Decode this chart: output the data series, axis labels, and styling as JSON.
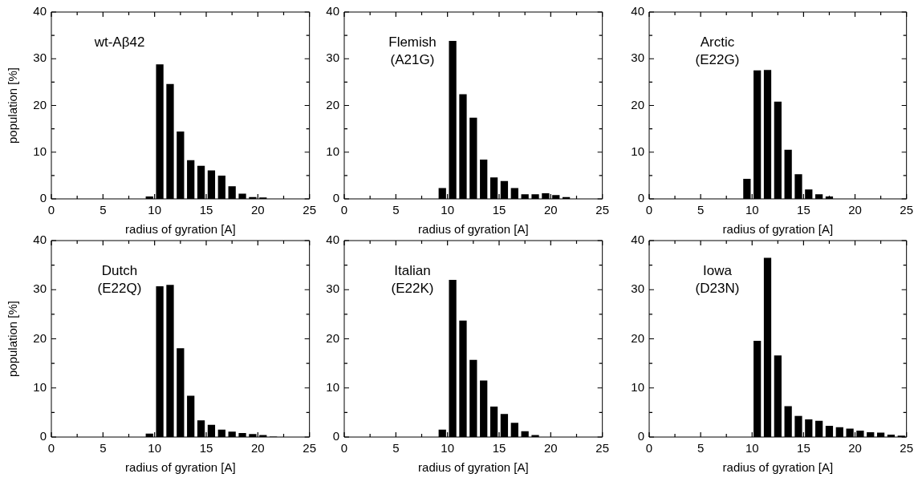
{
  "chart_data": [
    {
      "type": "histogram",
      "annotations": [
        "wt-Aβ42"
      ],
      "ylabel": "population [%]",
      "xlabel": "radius of gyration [A]",
      "bins": [
        9,
        10,
        11,
        12,
        13,
        14,
        15,
        16,
        17,
        18,
        19,
        20,
        21
      ],
      "values": [
        0.5,
        28.8,
        24.6,
        14.4,
        8.3,
        7.1,
        6.1,
        5.0,
        2.7,
        1.1,
        0.4,
        0.3
      ],
      "color": "#000000",
      "xlim": [
        0,
        25
      ],
      "xticks": [
        0,
        {
          "value": 2.5,
          "label": null
        },
        5,
        {
          "value": 7.5,
          "label": null
        },
        10,
        {
          "value": 12.5,
          "label": null
        },
        15,
        {
          "value": 17.5,
          "label": null
        },
        20,
        {
          "value": 22.5,
          "label": null
        },
        25
      ],
      "ylim": [
        0,
        40
      ],
      "yticks": [
        0,
        {
          "value": 5,
          "label": null
        },
        10,
        {
          "value": 15,
          "label": null
        },
        20,
        {
          "value": 25,
          "label": null
        },
        30,
        {
          "value": 35,
          "label": null
        },
        40
      ],
      "grid": false
    },
    {
      "type": "histogram",
      "annotations": [
        "Flemish",
        "(A21G)"
      ],
      "xlabel": "radius of gyration [A]",
      "bins": [
        9,
        10,
        11,
        12,
        13,
        14,
        15,
        16,
        17,
        18,
        19,
        20,
        21,
        22
      ],
      "values": [
        2.3,
        33.8,
        22.4,
        17.4,
        8.4,
        4.6,
        3.8,
        2.3,
        1.0,
        1.0,
        1.2,
        0.8,
        0.4
      ],
      "color": "#000000",
      "xlim": [
        0,
        25
      ],
      "xticks": [
        0,
        {
          "value": 2.5,
          "label": null
        },
        5,
        {
          "value": 7.5,
          "label": null
        },
        10,
        {
          "value": 12.5,
          "label": null
        },
        15,
        {
          "value": 17.5,
          "label": null
        },
        20,
        {
          "value": 22.5,
          "label": null
        },
        25
      ],
      "ylim": [
        0,
        40
      ],
      "yticks": [
        0,
        {
          "value": 5,
          "label": null
        },
        10,
        {
          "value": 15,
          "label": null
        },
        20,
        {
          "value": 25,
          "label": null
        },
        30,
        {
          "value": 35,
          "label": null
        },
        40
      ],
      "grid": false
    },
    {
      "type": "histogram",
      "annotations": [
        "Arctic",
        "(E22G)"
      ],
      "xlabel": "radius of gyration [A]",
      "bins": [
        9,
        10,
        11,
        12,
        13,
        14,
        15,
        16,
        17,
        18
      ],
      "values": [
        4.3,
        27.5,
        27.6,
        20.8,
        10.5,
        5.3,
        2.0,
        1.0,
        0.5
      ],
      "color": "#000000",
      "xlim": [
        0,
        25
      ],
      "xticks": [
        0,
        {
          "value": 2.5,
          "label": null
        },
        5,
        {
          "value": 7.5,
          "label": null
        },
        10,
        {
          "value": 12.5,
          "label": null
        },
        15,
        {
          "value": 17.5,
          "label": null
        },
        20,
        {
          "value": 22.5,
          "label": null
        },
        25
      ],
      "ylim": [
        0,
        40
      ],
      "yticks": [
        0,
        {
          "value": 5,
          "label": null
        },
        10,
        {
          "value": 15,
          "label": null
        },
        20,
        {
          "value": 25,
          "label": null
        },
        30,
        {
          "value": 35,
          "label": null
        },
        40
      ],
      "grid": false
    },
    {
      "type": "histogram",
      "annotations": [
        "Dutch",
        "(E22Q)"
      ],
      "ylabel": "population [%]",
      "xlabel": "radius of gyration [A]",
      "bins": [
        9,
        10,
        11,
        12,
        13,
        14,
        15,
        16,
        17,
        18,
        19,
        20,
        21,
        22
      ],
      "values": [
        0.7,
        30.7,
        31.0,
        18.1,
        8.4,
        3.4,
        2.5,
        1.5,
        1.1,
        0.8,
        0.6,
        0.4,
        0.1
      ],
      "color": "#000000",
      "xlim": [
        0,
        25
      ],
      "xticks": [
        0,
        {
          "value": 2.5,
          "label": null
        },
        5,
        {
          "value": 7.5,
          "label": null
        },
        10,
        {
          "value": 12.5,
          "label": null
        },
        15,
        {
          "value": 17.5,
          "label": null
        },
        20,
        {
          "value": 22.5,
          "label": null
        },
        25
      ],
      "ylim": [
        0,
        40
      ],
      "yticks": [
        0,
        {
          "value": 5,
          "label": null
        },
        10,
        {
          "value": 15,
          "label": null
        },
        20,
        {
          "value": 25,
          "label": null
        },
        30,
        {
          "value": 35,
          "label": null
        },
        40
      ],
      "grid": false
    },
    {
      "type": "histogram",
      "annotations": [
        "Italian",
        "(E22K)"
      ],
      "xlabel": "radius of gyration [A]",
      "bins": [
        9,
        10,
        11,
        12,
        13,
        14,
        15,
        16,
        17,
        18,
        19
      ],
      "values": [
        1.5,
        32.0,
        23.7,
        15.7,
        11.5,
        6.2,
        4.7,
        2.9,
        1.2,
        0.4
      ],
      "color": "#000000",
      "xlim": [
        0,
        25
      ],
      "xticks": [
        0,
        {
          "value": 2.5,
          "label": null
        },
        5,
        {
          "value": 7.5,
          "label": null
        },
        10,
        {
          "value": 12.5,
          "label": null
        },
        15,
        {
          "value": 17.5,
          "label": null
        },
        20,
        {
          "value": 22.5,
          "label": null
        },
        25
      ],
      "ylim": [
        0,
        40
      ],
      "yticks": [
        0,
        {
          "value": 5,
          "label": null
        },
        10,
        {
          "value": 15,
          "label": null
        },
        20,
        {
          "value": 25,
          "label": null
        },
        30,
        {
          "value": 35,
          "label": null
        },
        40
      ],
      "grid": false
    },
    {
      "type": "histogram",
      "annotations": [
        "Iowa",
        "(D23N)"
      ],
      "xlabel": "radius of gyration [A]",
      "bins": [
        10,
        11,
        12,
        13,
        14,
        15,
        16,
        17,
        18,
        19,
        20,
        21,
        22,
        23,
        24,
        25
      ],
      "values": [
        19.6,
        36.5,
        16.6,
        6.3,
        4.3,
        3.6,
        3.3,
        2.3,
        2.0,
        1.7,
        1.3,
        1.0,
        0.9,
        0.5,
        0.3
      ],
      "color": "#000000",
      "xlim": [
        0,
        25
      ],
      "xticks": [
        0,
        {
          "value": 2.5,
          "label": null
        },
        5,
        {
          "value": 7.5,
          "label": null
        },
        10,
        {
          "value": 12.5,
          "label": null
        },
        15,
        {
          "value": 17.5,
          "label": null
        },
        20,
        {
          "value": 22.5,
          "label": null
        },
        25
      ],
      "ylim": [
        0,
        40
      ],
      "yticks": [
        0,
        {
          "value": 5,
          "label": null
        },
        10,
        {
          "value": 15,
          "label": null
        },
        20,
        {
          "value": 25,
          "label": null
        },
        30,
        {
          "value": 35,
          "label": null
        },
        40
      ],
      "grid": false
    }
  ]
}
